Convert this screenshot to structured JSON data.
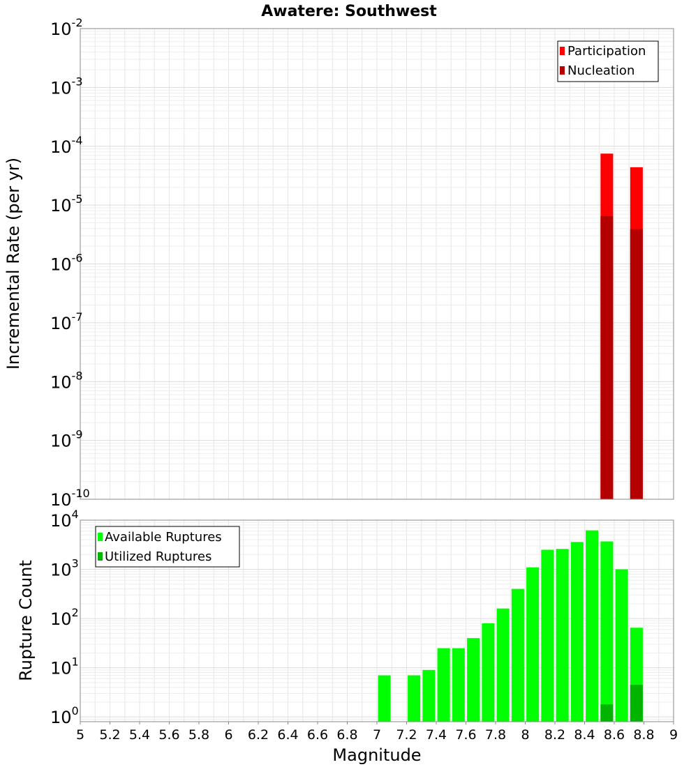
{
  "chart_data": [
    {
      "type": "bar",
      "title": "Awatere: Southwest",
      "xlabel": "",
      "ylabel": "Incremental Rate (per yr)",
      "y_scale": "log",
      "xlim": [
        5,
        9
      ],
      "ylim": [
        1e-10,
        0.01
      ],
      "y_ticks": [
        {
          "value": 1e-10,
          "base": "10",
          "exp": "-10"
        },
        {
          "value": 1e-09,
          "base": "10",
          "exp": "-9"
        },
        {
          "value": 1e-08,
          "base": "10",
          "exp": "-8"
        },
        {
          "value": 1e-07,
          "base": "10",
          "exp": "-7"
        },
        {
          "value": 1e-06,
          "base": "10",
          "exp": "-6"
        },
        {
          "value": 1e-05,
          "base": "10",
          "exp": "-5"
        },
        {
          "value": 0.0001,
          "base": "10",
          "exp": "-4"
        },
        {
          "value": 0.001,
          "base": "10",
          "exp": "-3"
        },
        {
          "value": 0.01,
          "base": "10",
          "exp": "-2"
        }
      ],
      "grid": true,
      "legend_position": "top-right",
      "series": [
        {
          "name": "Participation",
          "color": "#ff0000",
          "x": [
            8.55,
            8.75
          ],
          "values": [
            7.5e-05,
            4.4e-05
          ]
        },
        {
          "name": "Nucleation",
          "color": "#b40000",
          "x": [
            8.55,
            8.75
          ],
          "values": [
            6.5e-06,
            3.9e-06
          ]
        }
      ]
    },
    {
      "type": "bar",
      "title": "",
      "xlabel": "Magnitude",
      "ylabel": "Rupture Count",
      "y_scale": "log",
      "xlim": [
        5,
        9
      ],
      "ylim": [
        0.8,
        10000
      ],
      "x_ticks": [
        "5",
        "5.2",
        "5.4",
        "5.6",
        "5.8",
        "6",
        "6.2",
        "6.4",
        "6.6",
        "6.8",
        "7",
        "7.2",
        "7.4",
        "7.6",
        "7.8",
        "8",
        "8.2",
        "8.4",
        "8.6",
        "8.8",
        "9"
      ],
      "y_ticks": [
        {
          "value": 1,
          "base": "10",
          "exp": "0"
        },
        {
          "value": 10,
          "base": "10",
          "exp": "1"
        },
        {
          "value": 100,
          "base": "10",
          "exp": "2"
        },
        {
          "value": 1000,
          "base": "10",
          "exp": "3"
        },
        {
          "value": 10000,
          "base": "10",
          "exp": "4"
        }
      ],
      "grid": true,
      "legend_position": "top-left",
      "series": [
        {
          "name": "Available Ruptures",
          "color": "#00ff00",
          "x": [
            7.05,
            7.25,
            7.35,
            7.45,
            7.55,
            7.65,
            7.75,
            7.85,
            7.95,
            8.05,
            8.15,
            8.25,
            8.35,
            8.45,
            8.55,
            8.65,
            8.75
          ],
          "values": [
            7,
            7,
            9,
            25,
            25,
            40,
            80,
            160,
            400,
            1100,
            2500,
            2600,
            3600,
            6200,
            3700,
            1000,
            65
          ]
        },
        {
          "name": "Utilized Ruptures",
          "color": "#00b400",
          "x": [
            8.55,
            8.75
          ],
          "values": [
            1.8,
            4.5
          ]
        }
      ]
    }
  ]
}
